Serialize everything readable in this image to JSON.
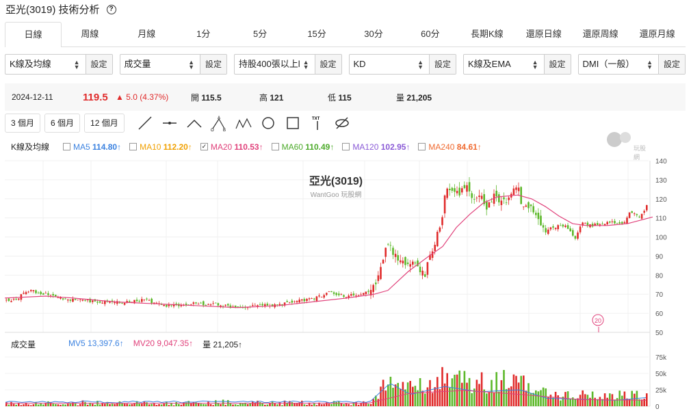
{
  "header": {
    "title": "亞光(3019) 技術分析",
    "help_icon": "?"
  },
  "tabs": [
    "日線",
    "周線",
    "月線",
    "1分",
    "5分",
    "15分",
    "30分",
    "60分",
    "長期K線",
    "還原日線",
    "還原周線",
    "還原月線"
  ],
  "active_tab": 0,
  "controls": [
    {
      "value": "K線及均線",
      "set": "設定"
    },
    {
      "value": "成交量",
      "set": "設定"
    },
    {
      "value": "持股400張以上l",
      "set": "設定"
    },
    {
      "value": "KD",
      "set": "設定"
    },
    {
      "value": "K線及EMA",
      "set": "設定"
    },
    {
      "value": "DMI（一般）",
      "set": "設定"
    }
  ],
  "quote": {
    "date": "2024-12-11",
    "price": "119.5",
    "change": "▲ 5.0 (4.37%)",
    "open_label": "開",
    "open": "115.5",
    "high_label": "高",
    "high": "121",
    "low_label": "低",
    "low": "115",
    "vol_label": "量",
    "vol": "21,205"
  },
  "ranges": [
    "3 個月",
    "6 個月",
    "12 個月"
  ],
  "tools": [
    "line-tool",
    "horizontal-line-tool",
    "polyline-tool",
    "abcd-pattern-tool",
    "xabcd-pattern-tool",
    "circle-tool",
    "rectangle-tool",
    "text-tool",
    "hide-tool"
  ],
  "legend": {
    "label": "K線及均線",
    "items": [
      {
        "name": "MA5",
        "value": "114.80",
        "arrow": "↑",
        "color": "#3b82e0",
        "checked": false
      },
      {
        "name": "MA10",
        "value": "112.20",
        "arrow": "↑",
        "color": "#f0a000",
        "checked": false
      },
      {
        "name": "MA20",
        "value": "110.53",
        "arrow": "↑",
        "color": "#e0407a",
        "checked": true
      },
      {
        "name": "MA60",
        "value": "110.49",
        "arrow": "↑",
        "color": "#4caa2a",
        "checked": false
      },
      {
        "name": "MA120",
        "value": "102.95",
        "arrow": "↑",
        "color": "#8a5ad6",
        "checked": false
      },
      {
        "name": "MA240",
        "value": "84.61",
        "arrow": "↑",
        "color": "#f06a30",
        "checked": false
      }
    ]
  },
  "chart_title": "亞光(3019)",
  "chart_subtitle": "WantGoo 玩股網",
  "watermark": "玩股網",
  "y_ticks": [
    "140",
    "130",
    "120",
    "110",
    "100",
    "90",
    "80",
    "70",
    "60",
    "50"
  ],
  "marker": "20",
  "vol_legend": {
    "label": "成交量",
    "mv5": "MV5 13,397.6↑",
    "mv5_color": "#3b82e0",
    "mv20": "MV20 9,047.35↑",
    "mv20_color": "#e0407a",
    "vol": "量 21,205↑"
  },
  "vol_ticks": [
    "75k",
    "50k",
    "25k",
    "0"
  ],
  "chart_data": {
    "type": "candlestick",
    "ylim": [
      50,
      140
    ],
    "vol_ylim": [
      0,
      75000
    ],
    "price_path": [
      [
        0,
        67
      ],
      [
        20,
        67
      ],
      [
        40,
        72
      ],
      [
        70,
        70
      ],
      [
        100,
        67
      ],
      [
        140,
        66
      ],
      [
        180,
        66
      ],
      [
        210,
        67
      ],
      [
        240,
        64
      ],
      [
        280,
        65
      ],
      [
        310,
        65
      ],
      [
        340,
        63
      ],
      [
        370,
        64
      ],
      [
        400,
        64
      ],
      [
        430,
        66
      ],
      [
        460,
        68
      ],
      [
        480,
        71
      ],
      [
        500,
        69
      ],
      [
        530,
        70
      ],
      [
        545,
        73
      ],
      [
        555,
        84
      ],
      [
        565,
        97
      ],
      [
        575,
        90
      ],
      [
        590,
        87
      ],
      [
        605,
        85
      ],
      [
        620,
        81
      ],
      [
        630,
        92
      ],
      [
        640,
        104
      ],
      [
        645,
        110
      ],
      [
        650,
        124
      ],
      [
        660,
        125
      ],
      [
        670,
        122
      ],
      [
        680,
        128
      ],
      [
        690,
        120
      ],
      [
        700,
        122
      ],
      [
        710,
        116
      ],
      [
        720,
        121
      ],
      [
        730,
        118
      ],
      [
        740,
        120
      ],
      [
        750,
        125
      ],
      [
        755,
        128
      ],
      [
        760,
        117
      ],
      [
        770,
        116
      ],
      [
        780,
        113
      ],
      [
        790,
        104
      ],
      [
        800,
        104
      ],
      [
        815,
        106
      ],
      [
        830,
        105
      ],
      [
        840,
        99
      ],
      [
        850,
        108
      ],
      [
        860,
        106
      ],
      [
        880,
        107
      ],
      [
        900,
        108
      ],
      [
        910,
        106
      ],
      [
        920,
        113
      ],
      [
        935,
        110
      ],
      [
        947,
        119.5
      ]
    ],
    "ma20_path": [
      [
        0,
        68
      ],
      [
        60,
        69
      ],
      [
        100,
        68
      ],
      [
        160,
        66
      ],
      [
        220,
        65
      ],
      [
        280,
        64
      ],
      [
        340,
        63
      ],
      [
        400,
        64
      ],
      [
        450,
        66
      ],
      [
        500,
        68
      ],
      [
        540,
        70
      ],
      [
        560,
        72
      ],
      [
        590,
        82
      ],
      [
        620,
        90
      ],
      [
        640,
        95
      ],
      [
        660,
        105
      ],
      [
        680,
        112
      ],
      [
        700,
        118
      ],
      [
        720,
        121
      ],
      [
        750,
        122
      ],
      [
        770,
        120
      ],
      [
        790,
        116
      ],
      [
        810,
        111
      ],
      [
        830,
        107
      ],
      [
        850,
        106
      ],
      [
        880,
        106
      ],
      [
        910,
        107
      ],
      [
        947,
        110.5
      ]
    ],
    "volume_peaks": [
      [
        560,
        40000
      ],
      [
        570,
        60000
      ],
      [
        580,
        32000
      ],
      [
        630,
        38000
      ],
      [
        645,
        58000
      ],
      [
        660,
        52000
      ],
      [
        690,
        45000
      ],
      [
        760,
        50000
      ],
      [
        800,
        20000
      ],
      [
        947,
        21205
      ]
    ]
  }
}
